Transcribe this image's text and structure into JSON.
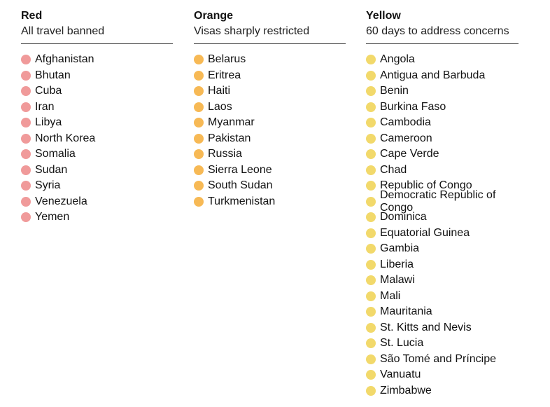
{
  "columns": [
    {
      "title": "Red",
      "subtitle": "All travel banned",
      "color": "#f09a9a",
      "items": [
        "Afghanistan",
        "Bhutan",
        "Cuba",
        "Iran",
        "Libya",
        "North Korea",
        "Somalia",
        "Sudan",
        "Syria",
        "Venezuela",
        "Yemen"
      ]
    },
    {
      "title": "Orange",
      "subtitle": "Visas sharply restricted",
      "color": "#f7b955",
      "items": [
        "Belarus",
        "Eritrea",
        "Haiti",
        "Laos",
        "Myanmar",
        "Pakistan",
        "Russia",
        "Sierra Leone",
        "South Sudan",
        "Turkmenistan"
      ]
    },
    {
      "title": "Yellow",
      "subtitle": "60 days to address concerns",
      "color": "#f2d96b",
      "items": [
        "Angola",
        "Antigua and Barbuda",
        "Benin",
        "Burkina Faso",
        "Cambodia",
        "Cameroon",
        "Cape Verde",
        "Chad",
        "Republic of Congo",
        "Democratic Republic of Congo",
        "Dominica",
        "Equatorial Guinea",
        "Gambia",
        "Liberia",
        "Malawi",
        "Mali",
        "Mauritania",
        "St. Kitts and Nevis",
        "St. Lucia",
        "São Tomé and Príncipe",
        "Vanuatu",
        "Zimbabwe"
      ]
    }
  ]
}
